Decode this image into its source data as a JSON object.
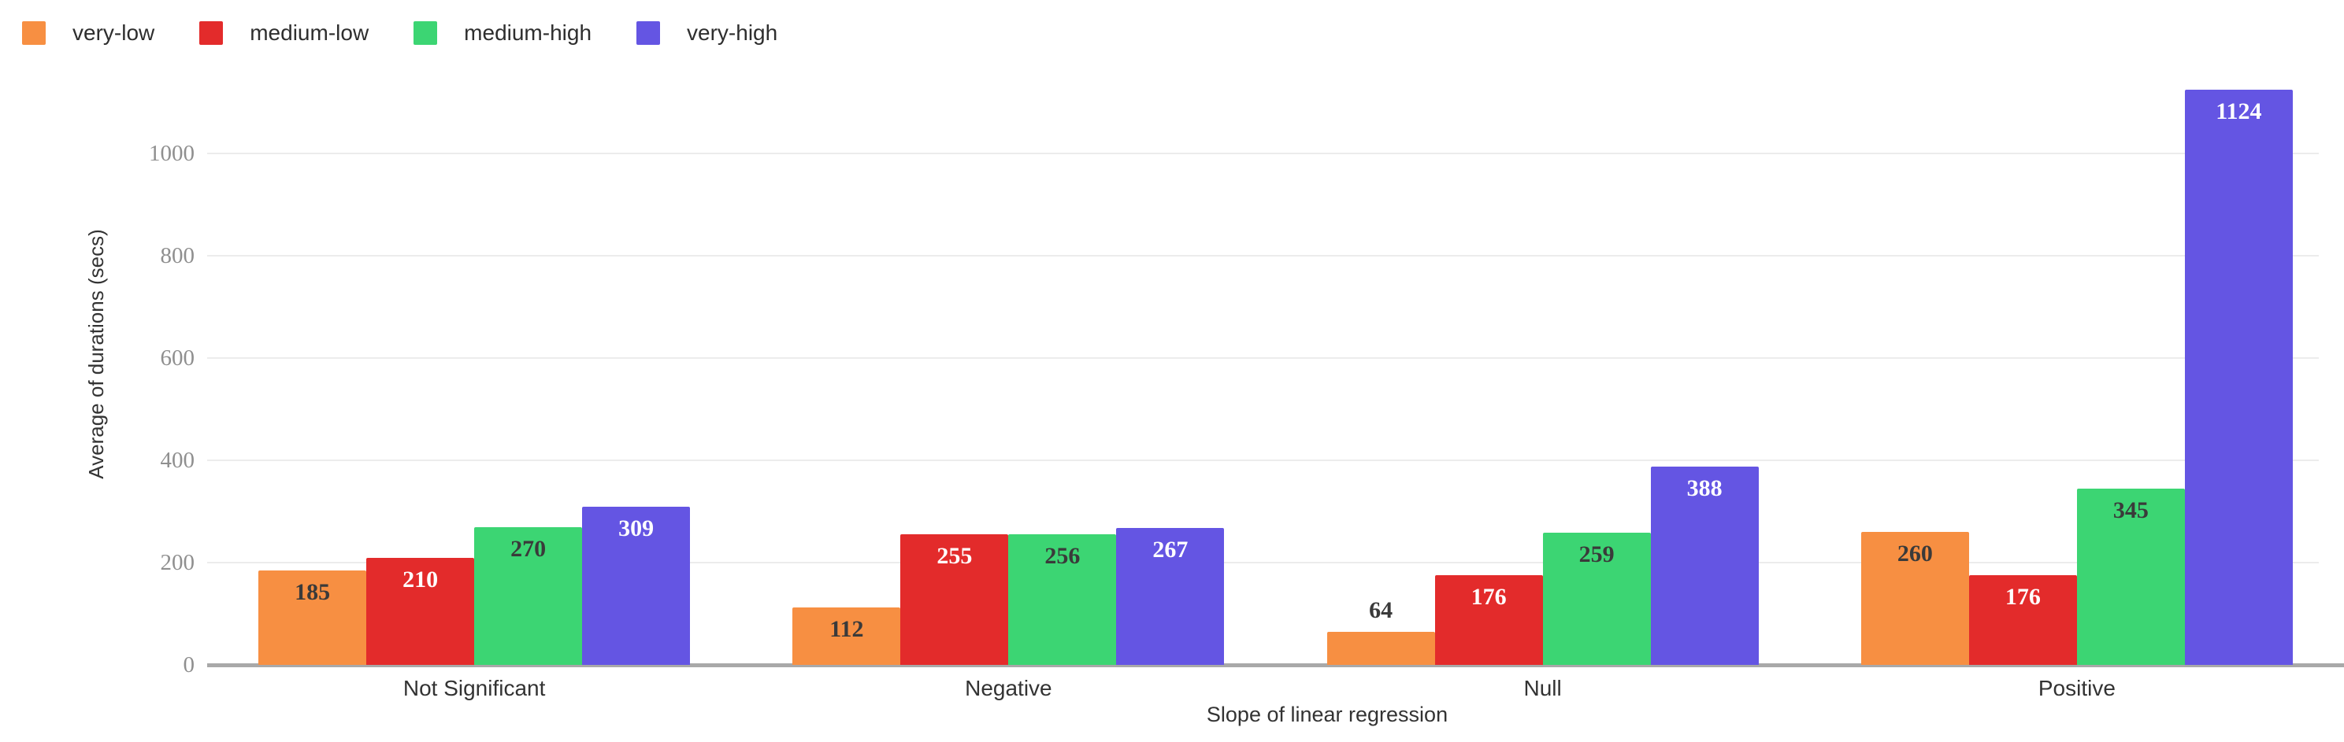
{
  "chart_data": {
    "type": "bar",
    "categories": [
      "Not Significant",
      "Negative",
      "Null",
      "Positive"
    ],
    "series": [
      {
        "name": "very-low",
        "color": "#f78f42",
        "label_color": "#3a3a3a",
        "values": [
          185,
          112,
          64,
          260
        ]
      },
      {
        "name": "medium-low",
        "color": "#e32b2b",
        "label_color": "#ffffff",
        "values": [
          210,
          255,
          176,
          176
        ]
      },
      {
        "name": "medium-high",
        "color": "#3cd573",
        "label_color": "#3a3a3a",
        "values": [
          270,
          256,
          259,
          345
        ]
      },
      {
        "name": "very-high",
        "color": "#6455e3",
        "label_color": "#ffffff",
        "values": [
          309,
          267,
          388,
          1124
        ]
      }
    ],
    "xlabel": "Slope of linear regression",
    "ylabel": "Average of durations (secs)",
    "yticks": [
      0,
      200,
      400,
      600,
      800,
      1000
    ],
    "ylim": [
      0,
      1150
    ],
    "legend_position": "top-left",
    "legend_labels": [
      "very-low",
      "medium-low",
      "medium-high",
      "very-high"
    ],
    "grid": "horizontal",
    "bar_value_labels": true
  },
  "style": {
    "background": "#ffffff",
    "grid_color": "#ececec",
    "axis_line_color": "#a9a9a9",
    "tick_label_color": "#8f8f8f",
    "axis_title_color": "#333333",
    "category_label_color": "#333333",
    "legend_text_color": "#2e2e2e"
  }
}
